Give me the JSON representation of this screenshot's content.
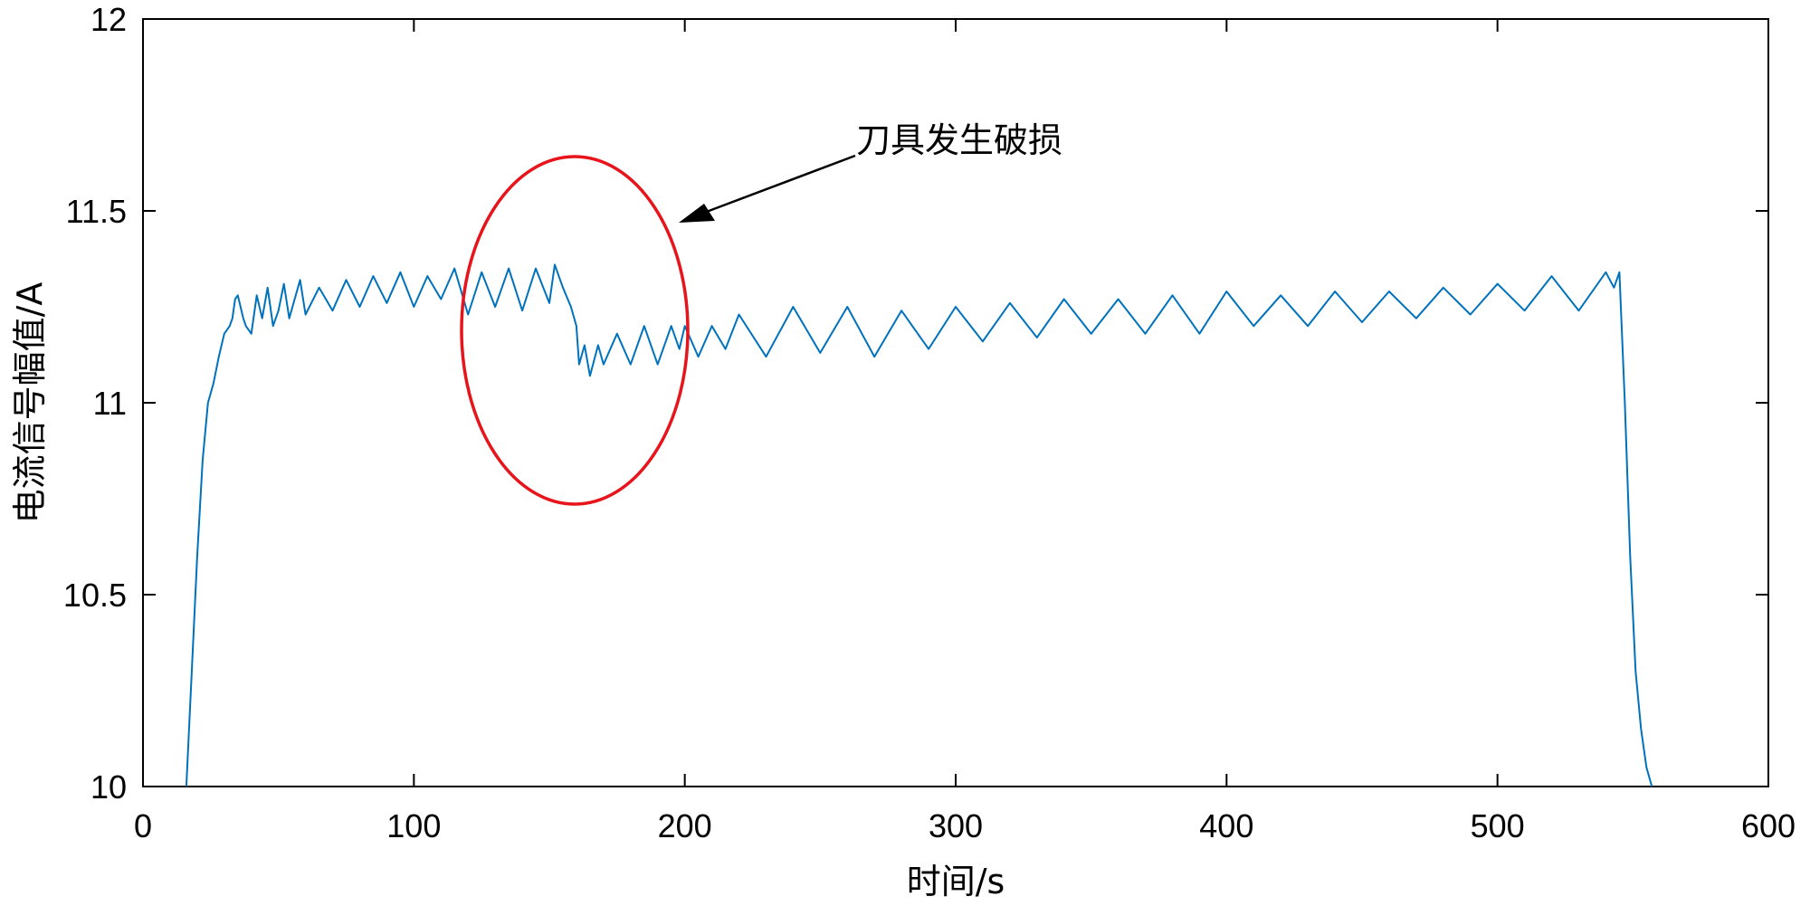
{
  "chart_data": {
    "type": "line",
    "xlabel": "时间/s",
    "ylabel": "电流信号幅值/A",
    "xlim": [
      0,
      600
    ],
    "ylim": [
      10,
      12
    ],
    "xticks": [
      0,
      100,
      200,
      300,
      400,
      500,
      600
    ],
    "yticks": [
      10,
      10.5,
      11,
      11.5,
      12
    ],
    "xtick_labels": [
      "0",
      "100",
      "200",
      "300",
      "400",
      "500",
      "600"
    ],
    "ytick_labels": [
      "10",
      "10.5",
      "11",
      "11.5",
      "12"
    ],
    "grid": false,
    "line_color": "#0072BD",
    "series": [
      {
        "x": [
          16,
          18,
          20,
          22,
          24,
          26,
          28,
          30,
          32,
          33,
          34,
          35,
          36,
          37,
          38,
          40,
          42,
          44,
          46,
          48,
          50,
          52,
          54,
          56,
          58,
          60,
          65,
          70,
          75,
          80,
          85,
          90,
          95,
          100,
          105,
          110,
          115,
          120,
          125,
          130,
          135,
          140,
          145,
          150,
          152,
          155,
          158,
          160,
          161,
          163,
          165,
          168,
          170,
          175,
          180,
          185,
          190,
          195,
          198,
          200,
          205,
          210,
          215,
          220,
          230,
          240,
          250,
          260,
          270,
          280,
          290,
          300,
          310,
          320,
          330,
          340,
          350,
          360,
          370,
          380,
          390,
          400,
          410,
          420,
          430,
          440,
          450,
          460,
          470,
          480,
          490,
          500,
          510,
          520,
          530,
          540,
          543,
          545,
          547,
          549,
          551,
          553,
          555,
          557
        ],
        "y": [
          10.0,
          10.3,
          10.6,
          10.85,
          11.0,
          11.05,
          11.12,
          11.18,
          11.2,
          11.22,
          11.27,
          11.28,
          11.25,
          11.22,
          11.2,
          11.18,
          11.28,
          11.22,
          11.3,
          11.2,
          11.24,
          11.31,
          11.22,
          11.27,
          11.32,
          11.23,
          11.3,
          11.24,
          11.32,
          11.25,
          11.33,
          11.26,
          11.34,
          11.25,
          11.33,
          11.27,
          11.35,
          11.23,
          11.34,
          11.25,
          11.35,
          11.24,
          11.35,
          11.26,
          11.36,
          11.3,
          11.25,
          11.2,
          11.1,
          11.15,
          11.07,
          11.15,
          11.1,
          11.18,
          11.1,
          11.2,
          11.1,
          11.2,
          11.14,
          11.2,
          11.12,
          11.2,
          11.14,
          11.23,
          11.12,
          11.25,
          11.13,
          11.25,
          11.12,
          11.24,
          11.14,
          11.25,
          11.16,
          11.26,
          11.17,
          11.27,
          11.18,
          11.27,
          11.18,
          11.28,
          11.18,
          11.29,
          11.2,
          11.28,
          11.2,
          11.29,
          11.21,
          11.29,
          11.22,
          11.3,
          11.23,
          11.31,
          11.24,
          11.33,
          11.24,
          11.34,
          11.3,
          11.34,
          11.0,
          10.6,
          10.3,
          10.15,
          10.05,
          10.0
        ]
      }
    ],
    "annotations": [
      {
        "text": "刀具发生破损",
        "ellipse_color": "#E8141B"
      }
    ]
  }
}
